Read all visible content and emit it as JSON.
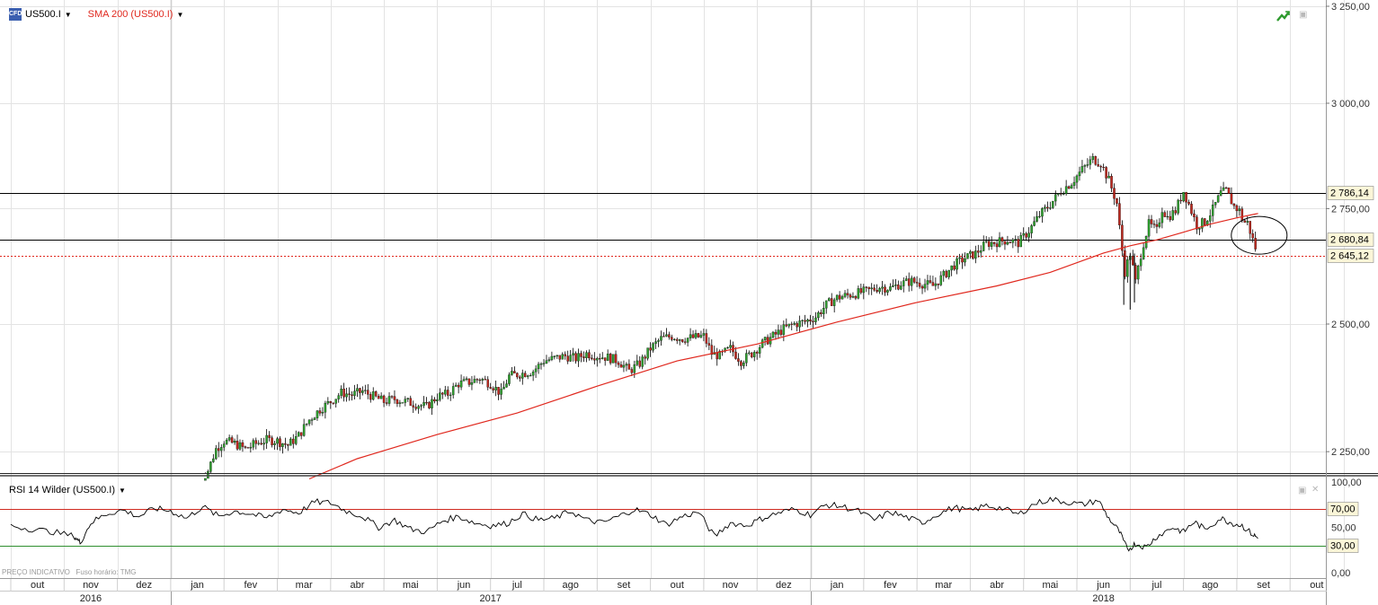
{
  "header": {
    "symbol_label": "US500.I",
    "indicator_label": "SMA 200 (US500.I)",
    "indicator_color": "#e0281e",
    "symbol_icon": "cfd-icon",
    "trend_icon": "trend-up-icon"
  },
  "rsi_header": {
    "label": "RSI 14 Wilder (US500.I)"
  },
  "footer_note": "PREÇO INDICATIVO   Fuso horário: TMG",
  "chart_data": [
    {
      "type": "candlestick",
      "series_name": "US500.I",
      "overlay_name": "SMA 200 (US500.I)",
      "y_ticks": [
        "3 250,00",
        "3 000,00",
        "2 750,00",
        "2 500,00",
        "2 250,00"
      ],
      "y_tick_values": [
        3250,
        3000,
        2750,
        2500,
        2250
      ],
      "ylim": [
        2210,
        3255
      ],
      "level_lines": [
        {
          "value": 2786.14,
          "label": "2 786,14",
          "color": "#000000"
        },
        {
          "value": 2680.84,
          "label": "2 680,84",
          "color": "#000000"
        },
        {
          "value": 2645.12,
          "label": "2 645,12",
          "color": "#e0281e"
        }
      ],
      "close_path": [
        {
          "m": 3.55,
          "v": 2195
        },
        {
          "m": 3.7,
          "v": 2215
        },
        {
          "m": 3.85,
          "v": 2255
        },
        {
          "m": 4.0,
          "v": 2270
        },
        {
          "m": 4.2,
          "v": 2265
        },
        {
          "m": 4.4,
          "v": 2255
        },
        {
          "m": 4.6,
          "v": 2265
        },
        {
          "m": 4.8,
          "v": 2272
        },
        {
          "m": 5.0,
          "v": 2270
        },
        {
          "m": 5.2,
          "v": 2262
        },
        {
          "m": 5.4,
          "v": 2280
        },
        {
          "m": 5.6,
          "v": 2310
        },
        {
          "m": 5.8,
          "v": 2330
        },
        {
          "m": 6.0,
          "v": 2345
        },
        {
          "m": 6.2,
          "v": 2362
        },
        {
          "m": 6.4,
          "v": 2358
        },
        {
          "m": 6.6,
          "v": 2365
        },
        {
          "m": 6.8,
          "v": 2355
        },
        {
          "m": 7.0,
          "v": 2345
        },
        {
          "m": 7.2,
          "v": 2350
        },
        {
          "m": 7.4,
          "v": 2345
        },
        {
          "m": 7.6,
          "v": 2340
        },
        {
          "m": 7.8,
          "v": 2335
        },
        {
          "m": 8.0,
          "v": 2355
        },
        {
          "m": 8.2,
          "v": 2360
        },
        {
          "m": 8.4,
          "v": 2380
        },
        {
          "m": 8.6,
          "v": 2383
        },
        {
          "m": 8.8,
          "v": 2390
        },
        {
          "m": 9.0,
          "v": 2380
        },
        {
          "m": 9.2,
          "v": 2360
        },
        {
          "m": 9.35,
          "v": 2395
        },
        {
          "m": 9.6,
          "v": 2400
        },
        {
          "m": 9.8,
          "v": 2405
        },
        {
          "m": 10.0,
          "v": 2425
        },
        {
          "m": 10.2,
          "v": 2430
        },
        {
          "m": 10.4,
          "v": 2435
        },
        {
          "m": 10.6,
          "v": 2430
        },
        {
          "m": 10.8,
          "v": 2440
        },
        {
          "m": 11.0,
          "v": 2435
        },
        {
          "m": 11.2,
          "v": 2432
        },
        {
          "m": 11.4,
          "v": 2425
        },
        {
          "m": 11.6,
          "v": 2405
        },
        {
          "m": 11.8,
          "v": 2420
        },
        {
          "m": 12.0,
          "v": 2450
        },
        {
          "m": 12.2,
          "v": 2470
        },
        {
          "m": 12.4,
          "v": 2475
        },
        {
          "m": 12.6,
          "v": 2470
        },
        {
          "m": 12.8,
          "v": 2472
        },
        {
          "m": 13.0,
          "v": 2475
        },
        {
          "m": 13.15,
          "v": 2440
        },
        {
          "m": 13.3,
          "v": 2435
        },
        {
          "m": 13.5,
          "v": 2450
        },
        {
          "m": 13.7,
          "v": 2425
        },
        {
          "m": 13.9,
          "v": 2440
        },
        {
          "m": 14.1,
          "v": 2460
        },
        {
          "m": 14.3,
          "v": 2475
        },
        {
          "m": 14.5,
          "v": 2490
        },
        {
          "m": 14.7,
          "v": 2500
        },
        {
          "m": 14.9,
          "v": 2505
        },
        {
          "m": 15.1,
          "v": 2515
        },
        {
          "m": 15.3,
          "v": 2540
        },
        {
          "m": 15.5,
          "v": 2555
        },
        {
          "m": 15.7,
          "v": 2560
        },
        {
          "m": 15.9,
          "v": 2565
        },
        {
          "m": 16.1,
          "v": 2570
        },
        {
          "m": 16.3,
          "v": 2578
        },
        {
          "m": 16.5,
          "v": 2575
        },
        {
          "m": 16.7,
          "v": 2585
        },
        {
          "m": 16.9,
          "v": 2590
        },
        {
          "m": 17.1,
          "v": 2585
        },
        {
          "m": 17.3,
          "v": 2580
        },
        {
          "m": 17.5,
          "v": 2602
        },
        {
          "m": 17.7,
          "v": 2625
        },
        {
          "m": 17.9,
          "v": 2640
        },
        {
          "m": 18.1,
          "v": 2650
        },
        {
          "m": 18.3,
          "v": 2672
        },
        {
          "m": 18.5,
          "v": 2675
        },
        {
          "m": 18.7,
          "v": 2680
        },
        {
          "m": 18.9,
          "v": 2673
        },
        {
          "m": 19.1,
          "v": 2700
        },
        {
          "m": 19.3,
          "v": 2735
        },
        {
          "m": 19.5,
          "v": 2760
        },
        {
          "m": 19.7,
          "v": 2790
        },
        {
          "m": 19.9,
          "v": 2810
        },
        {
          "m": 20.1,
          "v": 2840
        },
        {
          "m": 20.3,
          "v": 2865
        },
        {
          "m": 20.45,
          "v": 2855
        },
        {
          "m": 20.6,
          "v": 2815
        },
        {
          "m": 20.75,
          "v": 2762
        },
        {
          "m": 20.82,
          "v": 2685
        },
        {
          "m": 20.9,
          "v": 2610
        },
        {
          "m": 21.0,
          "v": 2650
        },
        {
          "m": 21.1,
          "v": 2588
        },
        {
          "m": 21.22,
          "v": 2660
        },
        {
          "m": 21.35,
          "v": 2715
        },
        {
          "m": 21.5,
          "v": 2700
        },
        {
          "m": 21.6,
          "v": 2750
        },
        {
          "m": 21.7,
          "v": 2730
        },
        {
          "m": 21.85,
          "v": 2745
        },
        {
          "m": 22.0,
          "v": 2790
        },
        {
          "m": 22.1,
          "v": 2760
        },
        {
          "m": 22.25,
          "v": 2712
        },
        {
          "m": 22.4,
          "v": 2720
        },
        {
          "m": 22.55,
          "v": 2748
        },
        {
          "m": 22.7,
          "v": 2785
        },
        {
          "m": 22.8,
          "v": 2790
        },
        {
          "m": 22.95,
          "v": 2755
        },
        {
          "m": 23.05,
          "v": 2745
        },
        {
          "m": 23.12,
          "v": 2720
        },
        {
          "m": 23.2,
          "v": 2718
        },
        {
          "m": 23.3,
          "v": 2680
        },
        {
          "m": 23.4,
          "v": 2645
        }
      ],
      "sma_path": [
        {
          "m": 5.6,
          "v": 2200
        },
        {
          "m": 6.5,
          "v": 2237
        },
        {
          "m": 8.0,
          "v": 2282
        },
        {
          "m": 9.5,
          "v": 2323
        },
        {
          "m": 11.0,
          "v": 2375
        },
        {
          "m": 12.5,
          "v": 2425
        },
        {
          "m": 14.0,
          "v": 2459
        },
        {
          "m": 15.5,
          "v": 2504
        },
        {
          "m": 17.0,
          "v": 2545
        },
        {
          "m": 18.5,
          "v": 2580
        },
        {
          "m": 19.5,
          "v": 2609
        },
        {
          "m": 20.5,
          "v": 2651
        },
        {
          "m": 21.0,
          "v": 2667
        },
        {
          "m": 21.5,
          "v": 2680
        },
        {
          "m": 22.0,
          "v": 2697
        },
        {
          "m": 22.5,
          "v": 2715
        },
        {
          "m": 23.0,
          "v": 2729
        },
        {
          "m": 23.4,
          "v": 2739
        }
      ],
      "annotation": {
        "type": "ellipse",
        "month": 23.42,
        "value": 2690
      }
    },
    {
      "type": "line",
      "series_name": "RSI 14 Wilder (US500.I)",
      "y_ticks": [
        "100,00",
        "50,00",
        "0,00"
      ],
      "y_tick_values": [
        100,
        50,
        0
      ],
      "ylim": [
        0,
        100
      ],
      "thresholds": [
        {
          "value": 70,
          "label": "70,00",
          "color": "#d02a20"
        },
        {
          "value": 30,
          "label": "30,00",
          "color": "#2f8f2f"
        }
      ],
      "values_path": [
        {
          "m": 0.0,
          "v": 52
        },
        {
          "m": 0.4,
          "v": 48
        },
        {
          "m": 0.8,
          "v": 45
        },
        {
          "m": 1.2,
          "v": 40
        },
        {
          "m": 1.3,
          "v": 33
        },
        {
          "m": 1.5,
          "v": 55
        },
        {
          "m": 1.8,
          "v": 65
        },
        {
          "m": 2.1,
          "v": 69
        },
        {
          "m": 2.4,
          "v": 62
        },
        {
          "m": 2.7,
          "v": 71
        },
        {
          "m": 3.0,
          "v": 68
        },
        {
          "m": 3.3,
          "v": 60
        },
        {
          "m": 3.6,
          "v": 73
        },
        {
          "m": 3.9,
          "v": 62
        },
        {
          "m": 4.2,
          "v": 68
        },
        {
          "m": 4.5,
          "v": 65
        },
        {
          "m": 4.8,
          "v": 60
        },
        {
          "m": 5.1,
          "v": 70
        },
        {
          "m": 5.4,
          "v": 66
        },
        {
          "m": 5.7,
          "v": 78
        },
        {
          "m": 6.0,
          "v": 77
        },
        {
          "m": 6.3,
          "v": 68
        },
        {
          "m": 6.6,
          "v": 62
        },
        {
          "m": 6.9,
          "v": 50
        },
        {
          "m": 7.2,
          "v": 58
        },
        {
          "m": 7.5,
          "v": 48
        },
        {
          "m": 7.8,
          "v": 45
        },
        {
          "m": 8.1,
          "v": 57
        },
        {
          "m": 8.4,
          "v": 62
        },
        {
          "m": 8.7,
          "v": 55
        },
        {
          "m": 9.0,
          "v": 52
        },
        {
          "m": 9.3,
          "v": 54
        },
        {
          "m": 9.6,
          "v": 65
        },
        {
          "m": 9.9,
          "v": 58
        },
        {
          "m": 10.2,
          "v": 60
        },
        {
          "m": 10.5,
          "v": 68
        },
        {
          "m": 10.8,
          "v": 58
        },
        {
          "m": 11.1,
          "v": 55
        },
        {
          "m": 11.4,
          "v": 62
        },
        {
          "m": 11.7,
          "v": 70
        },
        {
          "m": 12.0,
          "v": 64
        },
        {
          "m": 12.3,
          "v": 53
        },
        {
          "m": 12.6,
          "v": 62
        },
        {
          "m": 12.9,
          "v": 67
        },
        {
          "m": 13.2,
          "v": 40
        },
        {
          "m": 13.5,
          "v": 55
        },
        {
          "m": 13.8,
          "v": 52
        },
        {
          "m": 14.1,
          "v": 60
        },
        {
          "m": 14.4,
          "v": 66
        },
        {
          "m": 14.7,
          "v": 70
        },
        {
          "m": 15.0,
          "v": 64
        },
        {
          "m": 15.3,
          "v": 75
        },
        {
          "m": 15.6,
          "v": 73
        },
        {
          "m": 15.9,
          "v": 68
        },
        {
          "m": 16.2,
          "v": 58
        },
        {
          "m": 16.5,
          "v": 67
        },
        {
          "m": 16.8,
          "v": 61
        },
        {
          "m": 17.1,
          "v": 55
        },
        {
          "m": 17.4,
          "v": 65
        },
        {
          "m": 17.7,
          "v": 72
        },
        {
          "m": 18.0,
          "v": 68
        },
        {
          "m": 18.3,
          "v": 74
        },
        {
          "m": 18.6,
          "v": 71
        },
        {
          "m": 18.9,
          "v": 64
        },
        {
          "m": 19.2,
          "v": 76
        },
        {
          "m": 19.5,
          "v": 81
        },
        {
          "m": 19.8,
          "v": 78
        },
        {
          "m": 20.1,
          "v": 75
        },
        {
          "m": 20.4,
          "v": 80
        },
        {
          "m": 20.6,
          "v": 60
        },
        {
          "m": 20.8,
          "v": 45
        },
        {
          "m": 20.95,
          "v": 25
        },
        {
          "m": 21.1,
          "v": 32
        },
        {
          "m": 21.3,
          "v": 28
        },
        {
          "m": 21.5,
          "v": 40
        },
        {
          "m": 21.8,
          "v": 50
        },
        {
          "m": 22.0,
          "v": 45
        },
        {
          "m": 22.2,
          "v": 56
        },
        {
          "m": 22.4,
          "v": 48
        },
        {
          "m": 22.7,
          "v": 60
        },
        {
          "m": 22.9,
          "v": 55
        },
        {
          "m": 23.1,
          "v": 52
        },
        {
          "m": 23.3,
          "v": 42
        },
        {
          "m": 23.4,
          "v": 38
        }
      ]
    }
  ],
  "x_axis": {
    "month_labels": [
      "out",
      "nov",
      "dez",
      "jan",
      "fev",
      "mar",
      "abr",
      "mai",
      "jun",
      "jul",
      "ago",
      "set",
      "out",
      "nov",
      "dez",
      "jan",
      "fev",
      "mar",
      "abr",
      "mai",
      "jun",
      "jul",
      "ago",
      "set",
      "out"
    ],
    "year_labels": [
      "2016",
      "2017",
      "2018"
    ]
  }
}
